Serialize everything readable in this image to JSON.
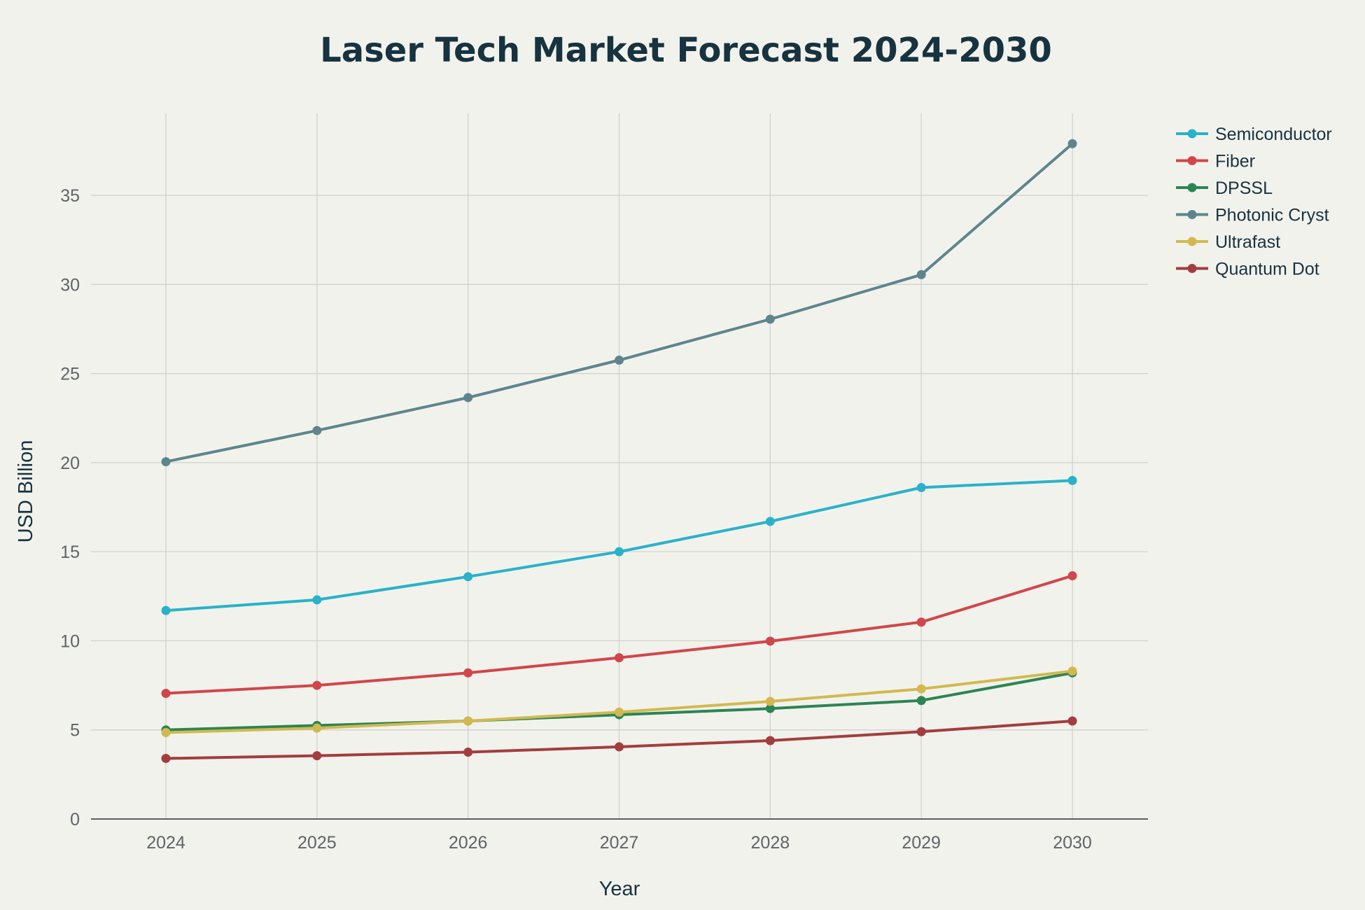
{
  "chart_data": {
    "type": "line",
    "title": "Laser Tech Market Forecast 2024-2030",
    "xlabel": "Year",
    "ylabel": "USD Billion",
    "categories": [
      "2024",
      "2025",
      "2026",
      "2027",
      "2028",
      "2029",
      "2030"
    ],
    "yticks": [
      0,
      5,
      10,
      15,
      20,
      25,
      30,
      35
    ],
    "ylim": [
      0,
      39.6
    ],
    "grid": true,
    "legend_position": "top-right",
    "series": [
      {
        "name": "Semiconductor",
        "color": "#29b2c9",
        "values": [
          11.7,
          12.3,
          13.6,
          15.0,
          16.7,
          18.6,
          19.0
        ]
      },
      {
        "name": "Fiber",
        "color": "#d1464b",
        "values": [
          7.05,
          7.5,
          8.2,
          9.05,
          9.98,
          11.05,
          13.65
        ]
      },
      {
        "name": "DPSSL",
        "color": "#2c8553",
        "values": [
          5.0,
          5.25,
          5.5,
          5.85,
          6.2,
          6.65,
          8.2
        ]
      },
      {
        "name": "Photonic Cryst",
        "color": "#5e858d",
        "values": [
          20.05,
          21.8,
          23.65,
          25.75,
          28.05,
          30.55,
          37.9
        ]
      },
      {
        "name": "Ultrafast",
        "color": "#d1b950",
        "values": [
          4.85,
          5.1,
          5.5,
          6.0,
          6.6,
          7.3,
          8.3
        ]
      },
      {
        "name": "Quantum Dot",
        "color": "#a33d3e",
        "values": [
          3.4,
          3.55,
          3.75,
          4.05,
          4.4,
          4.9,
          5.5
        ]
      }
    ]
  }
}
